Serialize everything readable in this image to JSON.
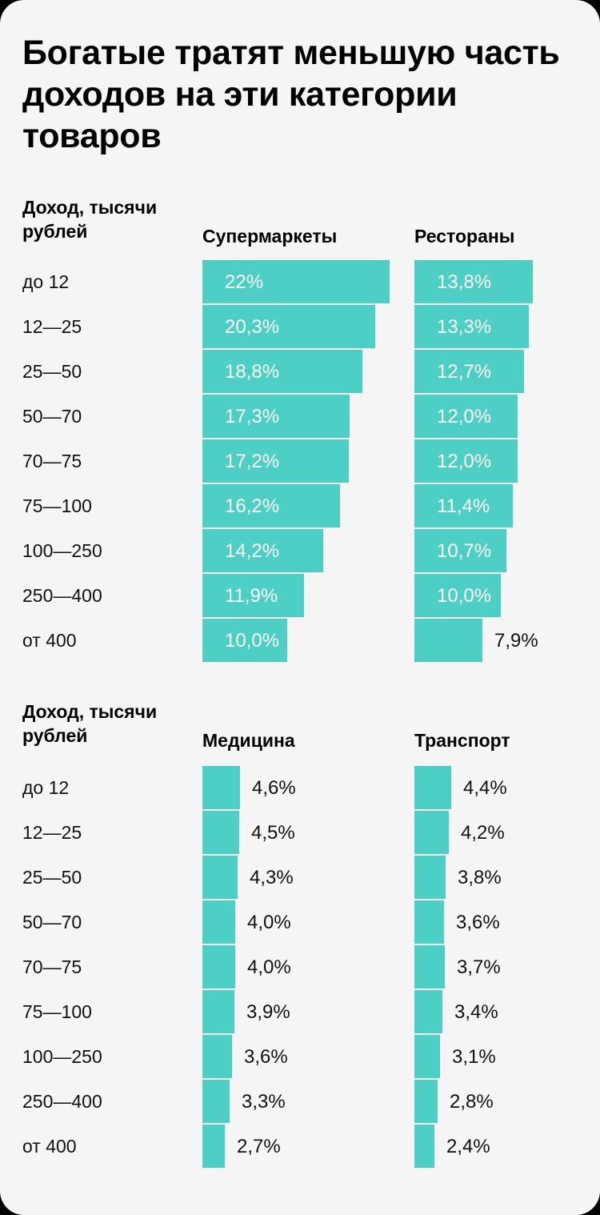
{
  "title": "Богатые тратят меньшую часть доходов на эти категории товаров",
  "colors": {
    "bar": "#4ecfc5",
    "background": "#f5f5f5"
  },
  "chart_data": [
    {
      "type": "bar",
      "orientation": "horizontal",
      "ylabel": "Доход, тысячи рублей",
      "categories": [
        "до 12",
        "12—25",
        "25—50",
        "50—70",
        "70—75",
        "75—100",
        "100—250",
        "250—400",
        "от 400"
      ],
      "series": [
        {
          "name": "Супермаркеты",
          "values": [
            22,
            20.3,
            18.8,
            17.3,
            17.2,
            16.2,
            14.2,
            11.9,
            10.0
          ],
          "labels": [
            "22%",
            "20,3%",
            "18,8%",
            "17,3%",
            "17,2%",
            "16,2%",
            "14,2%",
            "11,9%",
            "10,0%"
          ]
        },
        {
          "name": "Рестораны",
          "values": [
            13.8,
            13.3,
            12.7,
            12.0,
            12.0,
            11.4,
            10.7,
            10.0,
            7.9
          ],
          "labels": [
            "13,8%",
            "13,3%",
            "12,7%",
            "12,0%",
            "12,0%",
            "11,4%",
            "10,7%",
            "10,0%",
            "7,9%"
          ]
        }
      ]
    },
    {
      "type": "bar",
      "orientation": "horizontal",
      "ylabel": "Доход, тысячи рублей",
      "categories": [
        "до 12",
        "12—25",
        "25—50",
        "50—70",
        "70—75",
        "75—100",
        "100—250",
        "250—400",
        "от 400"
      ],
      "series": [
        {
          "name": "Медицина",
          "values": [
            4.6,
            4.5,
            4.3,
            4.0,
            4.0,
            3.9,
            3.6,
            3.3,
            2.7
          ],
          "labels": [
            "4,6%",
            "4,5%",
            "4,3%",
            "4,0%",
            "4,0%",
            "3,9%",
            "3,6%",
            "3,3%",
            "2,7%"
          ]
        },
        {
          "name": "Транспорт",
          "values": [
            4.4,
            4.2,
            3.8,
            3.6,
            3.7,
            3.4,
            3.1,
            2.8,
            2.4
          ],
          "labels": [
            "4,4%",
            "4,2%",
            "3,8%",
            "3,6%",
            "3,7%",
            "3,4%",
            "3,1%",
            "2,8%",
            "2,4%"
          ]
        }
      ]
    }
  ]
}
